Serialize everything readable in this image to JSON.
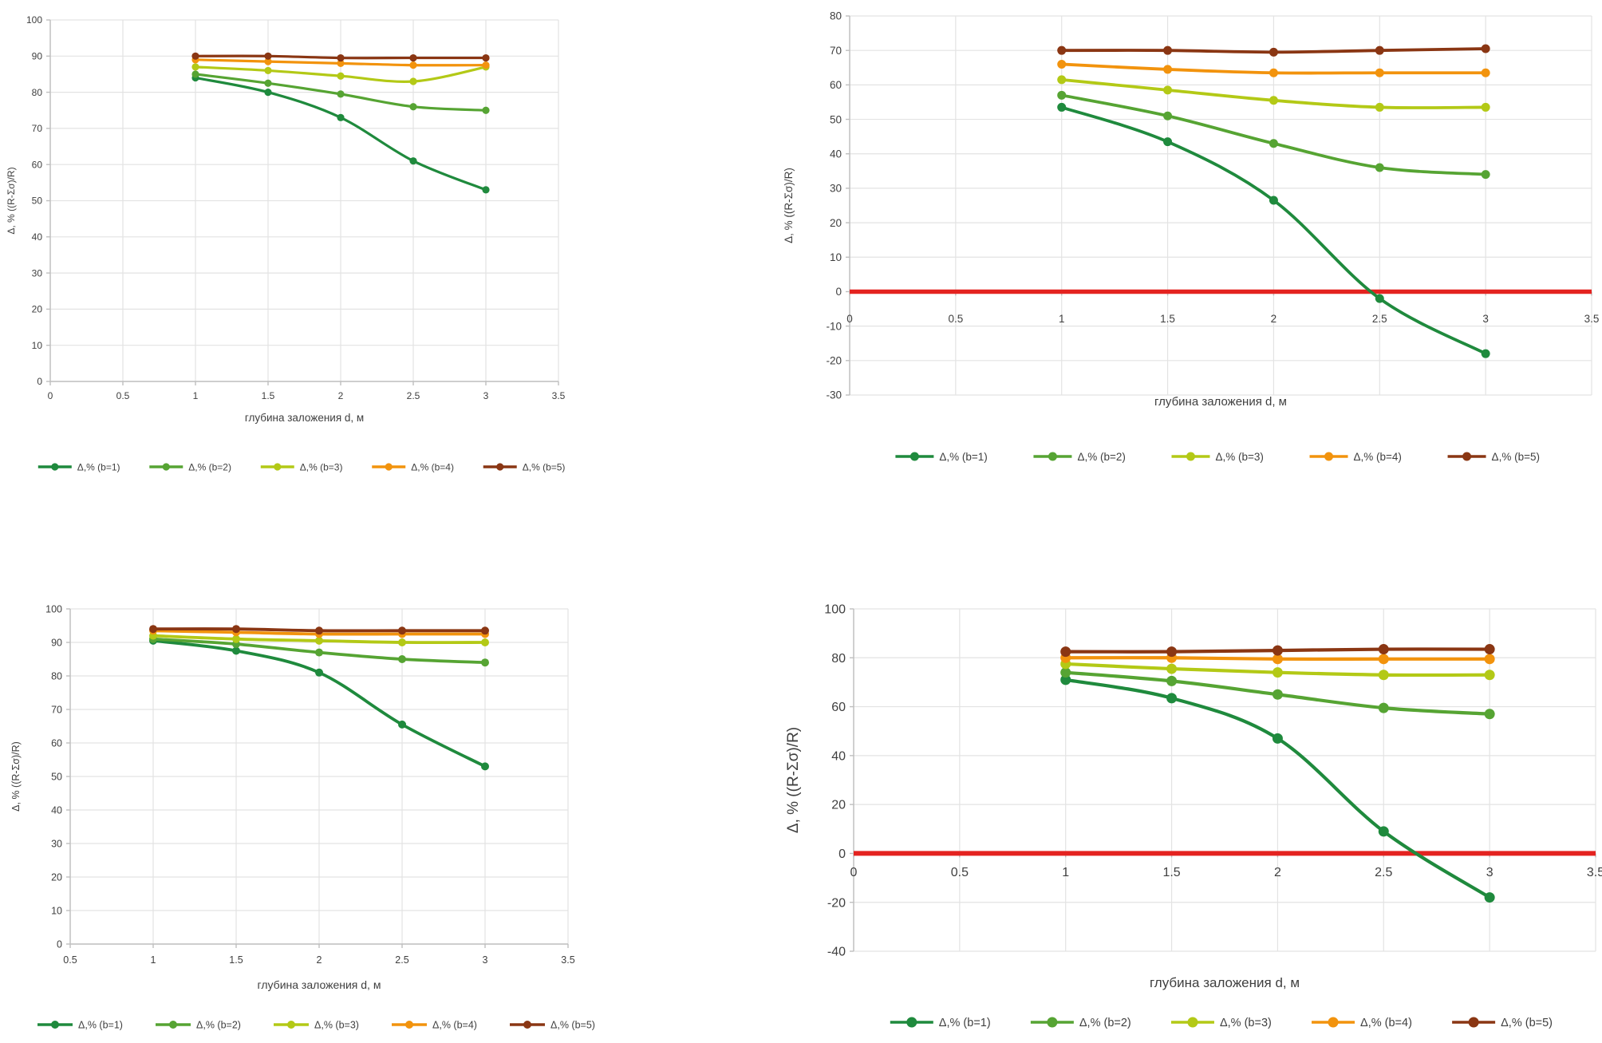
{
  "colors": {
    "series_b1": "#1f8a3d",
    "series_b2": "#56a433",
    "series_b3": "#b3c916",
    "series_b4": "#f2930d",
    "series_b5": "#8a3613",
    "zero_line_red": "#e42320",
    "gridline": "#e3e3e3",
    "axis_line": "#bfbfbf",
    "tick_text": "#3f3f3f",
    "background": "#ffffff"
  },
  "chart_data": [
    {
      "id": "top-left",
      "type": "line",
      "title": "",
      "xlabel": "глубина заложения d, м",
      "ylabel": "Δ, % ((R-Σσ)/R)",
      "xlim": [
        0,
        3.5
      ],
      "ylim": [
        0,
        100
      ],
      "x_ticks": [
        0,
        0.5,
        1,
        1.5,
        2,
        2.5,
        3,
        3.5
      ],
      "y_ticks": [
        0,
        10,
        20,
        30,
        40,
        50,
        60,
        70,
        80,
        90,
        100
      ],
      "grid": true,
      "zero_line": false,
      "legend_position": "bottom",
      "x": [
        1,
        1.5,
        2,
        2.5,
        3
      ],
      "series": [
        {
          "name": "Δ,% (b=1)",
          "color_key": "series_b1",
          "values": [
            84,
            80,
            73,
            61,
            53
          ]
        },
        {
          "name": "Δ,% (b=2)",
          "color_key": "series_b2",
          "values": [
            85,
            82.5,
            79.5,
            76,
            75
          ]
        },
        {
          "name": "Δ,% (b=3)",
          "color_key": "series_b3",
          "values": [
            87,
            86,
            84.5,
            83,
            87
          ]
        },
        {
          "name": "Δ,% (b=4)",
          "color_key": "series_b4",
          "values": [
            89,
            88.5,
            88,
            87.5,
            87.5
          ]
        },
        {
          "name": "Δ,% (b=5)",
          "color_key": "series_b5",
          "values": [
            90,
            90,
            89.5,
            89.5,
            89.5
          ]
        }
      ]
    },
    {
      "id": "top-right",
      "type": "line",
      "title": "",
      "xlabel": "глубина заложения d, м",
      "ylabel": "Δ, % ((R-Σσ)/R)",
      "xlim": [
        0,
        3.5
      ],
      "ylim": [
        -30,
        80
      ],
      "x_ticks": [
        0,
        0.5,
        1,
        1.5,
        2,
        2.5,
        3,
        3.5
      ],
      "y_ticks": [
        -30,
        -20,
        -10,
        0,
        10,
        20,
        30,
        40,
        50,
        60,
        70,
        80
      ],
      "grid": true,
      "zero_line": true,
      "legend_position": "bottom",
      "x": [
        1,
        1.5,
        2,
        2.5,
        3
      ],
      "series": [
        {
          "name": "Δ,% (b=1)",
          "color_key": "series_b1",
          "values": [
            53.5,
            43.5,
            26.5,
            -2,
            -18
          ]
        },
        {
          "name": "Δ,% (b=2)",
          "color_key": "series_b2",
          "values": [
            57,
            51,
            43,
            36,
            34
          ]
        },
        {
          "name": "Δ,% (b=3)",
          "color_key": "series_b3",
          "values": [
            61.5,
            58.5,
            55.5,
            53.5,
            53.5
          ]
        },
        {
          "name": "Δ,% (b=4)",
          "color_key": "series_b4",
          "values": [
            66,
            64.5,
            63.5,
            63.5,
            63.5
          ]
        },
        {
          "name": "Δ,% (b=5)",
          "color_key": "series_b5",
          "values": [
            70,
            70,
            69.5,
            70,
            70.5
          ]
        }
      ]
    },
    {
      "id": "bottom-left",
      "type": "line",
      "title": "",
      "xlabel": "глубина заложения d, м",
      "ylabel": "Δ, % ((R-Σσ)/R)",
      "xlim": [
        0.5,
        3.5
      ],
      "ylim": [
        0,
        100
      ],
      "x_ticks": [
        0.5,
        1,
        1.5,
        2,
        2.5,
        3,
        3.5
      ],
      "y_ticks": [
        0,
        10,
        20,
        30,
        40,
        50,
        60,
        70,
        80,
        90,
        100
      ],
      "grid": true,
      "zero_line": false,
      "legend_position": "bottom",
      "x": [
        1,
        1.5,
        2,
        2.5,
        3
      ],
      "series": [
        {
          "name": "Δ,% (b=1)",
          "color_key": "series_b1",
          "values": [
            90.5,
            87.5,
            81,
            65.5,
            53
          ]
        },
        {
          "name": "Δ,% (b=2)",
          "color_key": "series_b2",
          "values": [
            91,
            89.5,
            87,
            85,
            84
          ]
        },
        {
          "name": "Δ,% (b=3)",
          "color_key": "series_b3",
          "values": [
            92,
            91,
            90.5,
            90,
            90
          ]
        },
        {
          "name": "Δ,% (b=4)",
          "color_key": "series_b4",
          "values": [
            93.5,
            93,
            92.5,
            92.5,
            92.5
          ]
        },
        {
          "name": "Δ,% (b=5)",
          "color_key": "series_b5",
          "values": [
            94,
            94,
            93.5,
            93.5,
            93.5
          ]
        }
      ]
    },
    {
      "id": "bottom-right",
      "type": "line",
      "title": "",
      "xlabel": "глубина заложения d, м",
      "ylabel": "Δ, % ((R-Σσ)/R)",
      "xlim": [
        0,
        3.5
      ],
      "ylim": [
        -40,
        100
      ],
      "x_ticks": [
        0,
        0.5,
        1,
        1.5,
        2,
        2.5,
        3,
        3.5
      ],
      "y_ticks": [
        -40,
        -20,
        0,
        20,
        40,
        60,
        80,
        100
      ],
      "grid": true,
      "zero_line": true,
      "legend_position": "bottom",
      "x": [
        1,
        1.5,
        2,
        2.5,
        3
      ],
      "series": [
        {
          "name": "Δ,% (b=1)",
          "color_key": "series_b1",
          "values": [
            71,
            63.5,
            47,
            9,
            -18
          ]
        },
        {
          "name": "Δ,% (b=2)",
          "color_key": "series_b2",
          "values": [
            74,
            70.5,
            65,
            59.5,
            57
          ]
        },
        {
          "name": "Δ,% (b=3)",
          "color_key": "series_b3",
          "values": [
            77.5,
            75.5,
            74,
            73,
            73
          ]
        },
        {
          "name": "Δ,% (b=4)",
          "color_key": "series_b4",
          "values": [
            80,
            80,
            79.5,
            79.5,
            79.5
          ]
        },
        {
          "name": "Δ,% (b=5)",
          "color_key": "series_b5",
          "values": [
            82.5,
            82.5,
            83,
            83.5,
            83.5
          ]
        }
      ]
    }
  ]
}
